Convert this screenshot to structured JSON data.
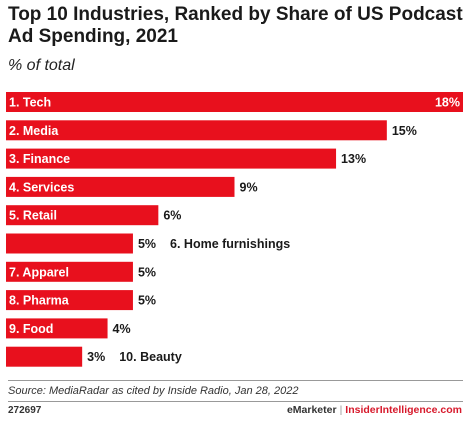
{
  "title": "Top 10 Industries, Ranked by Share of US Podcast Ad Spending, 2021",
  "subtitle": "% of total",
  "source": "Source: MediaRadar as cited by Inside Radio, Jan 28, 2022",
  "footer": {
    "chart_id": "272697",
    "brand_left": "eMarketer",
    "separator": "|",
    "brand_right": "InsiderIntelligence.com"
  },
  "colors": {
    "bar": "#e8101d",
    "label_inside": "#ffffff",
    "label_outside": "#1a1a1a"
  },
  "chart_data": {
    "type": "bar",
    "orientation": "horizontal",
    "categories": [
      "1. Tech",
      "2. Media",
      "3. Finance",
      "4. Services",
      "5. Retail",
      "6. Home furnishings",
      "7. Apparel",
      "8. Pharma",
      "9. Food",
      "10. Beauty"
    ],
    "values": [
      18,
      15,
      13,
      9,
      6,
      5,
      5,
      5,
      4,
      3
    ],
    "value_labels": [
      "18%",
      "15%",
      "13%",
      "9%",
      "6%",
      "5%",
      "5%",
      "5%",
      "4%",
      "3%"
    ],
    "category_label_outside": [
      false,
      false,
      false,
      false,
      false,
      true,
      false,
      false,
      false,
      true
    ],
    "unit": "%",
    "xlim": [
      0,
      18
    ],
    "grid": false,
    "legend": "none"
  }
}
